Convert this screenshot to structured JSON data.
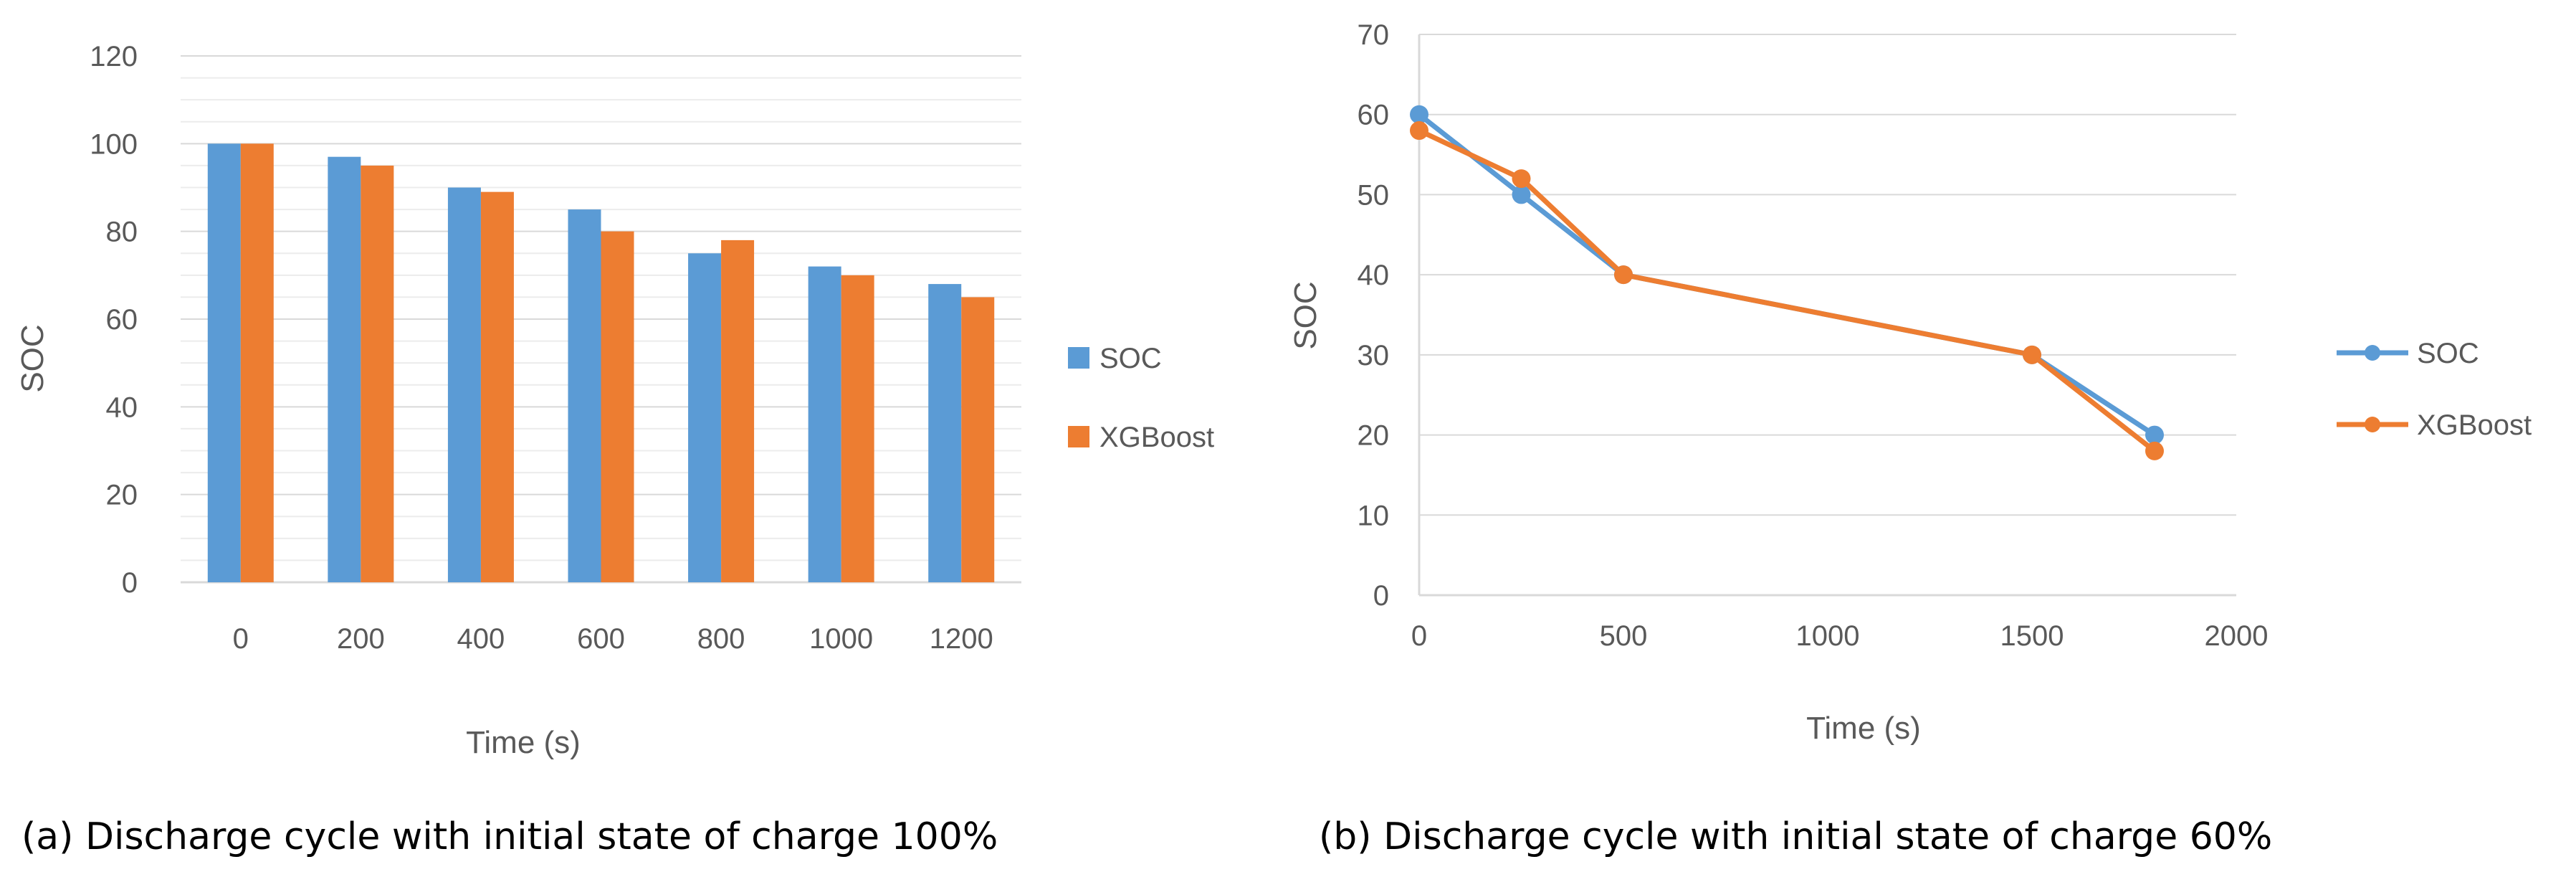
{
  "colors": {
    "soc": "#5b9bd5",
    "xgboost": "#ed7d31"
  },
  "chart_data": [
    {
      "type": "bar",
      "caption": "(a) Discharge cycle with initial state of charge 100%",
      "xlabel": "Time (s)",
      "ylabel": "SOC",
      "categories": [
        "0",
        "200",
        "400",
        "600",
        "800",
        "1000",
        "1200"
      ],
      "ylim": [
        0,
        120
      ],
      "yticks": [
        "0",
        "20",
        "40",
        "60",
        "80",
        "100",
        "120"
      ],
      "series": [
        {
          "name": "SOC",
          "values": [
            100,
            97,
            90,
            85,
            75,
            72,
            68
          ]
        },
        {
          "name": "XGBoost",
          "values": [
            100,
            95,
            89,
            80,
            78,
            70,
            65
          ]
        }
      ],
      "legend": "right"
    },
    {
      "type": "line",
      "caption": "(b) Discharge cycle with initial state of charge 60%",
      "xlabel": "Time (s)",
      "ylabel": "SOC",
      "xlim": [
        0,
        2000
      ],
      "xticks": [
        "0",
        "500",
        "1000",
        "1500",
        "2000"
      ],
      "ylim": [
        0,
        70
      ],
      "yticks": [
        "0",
        "10",
        "20",
        "30",
        "40",
        "50",
        "60",
        "70"
      ],
      "series": [
        {
          "name": "SOC",
          "x": [
            0,
            250,
            500,
            1500,
            1800
          ],
          "y": [
            60,
            50,
            40,
            30,
            20
          ]
        },
        {
          "name": "XGBoost",
          "x": [
            0,
            250,
            500,
            1500,
            1800
          ],
          "y": [
            58,
            52,
            40,
            30,
            18
          ]
        }
      ],
      "legend": "right"
    }
  ]
}
